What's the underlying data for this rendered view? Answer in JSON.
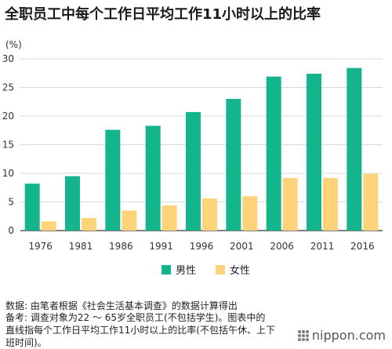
{
  "title": "全职员工中每个工作日平均工作11小时以上的比率",
  "unit_label": "(%)",
  "legend": {
    "male": "男性",
    "female": "女性"
  },
  "colors": {
    "male": "#14b48c",
    "female": "#ffd37a",
    "grid": "#d9d9d9",
    "axis": "#333333"
  },
  "notes": {
    "line1": "数据: 由笔者根据《社会生活基本调查》的数据计算得出",
    "line2": "备考: 调查对象为22 ～ 65岁全职员工(不包括学生)。图表中的",
    "line3": "直线指每个工作日平均工作11小时以上的比率(不包括午休、上下",
    "line4": "班时间)。"
  },
  "brand": {
    "text": "nippon.com",
    "icon": "nippon-dots-icon"
  },
  "chart_data": {
    "type": "bar",
    "categories": [
      "1976",
      "1981",
      "1986",
      "1991",
      "1996",
      "2001",
      "2006",
      "2011",
      "2016"
    ],
    "series": [
      {
        "name": "男性",
        "values": [
          8.2,
          9.5,
          17.6,
          18.3,
          20.7,
          23.0,
          26.9,
          27.4,
          28.4
        ]
      },
      {
        "name": "女性",
        "values": [
          1.6,
          2.2,
          3.5,
          4.4,
          5.6,
          6.0,
          9.2,
          9.2,
          9.9
        ]
      }
    ],
    "ylim": [
      0,
      30
    ],
    "yticks": [
      0,
      5,
      10,
      15,
      20,
      25,
      30
    ],
    "ytick_labels": [
      "0",
      "5",
      "10",
      "15",
      "20",
      "25",
      "30"
    ],
    "grid": true,
    "legend_position": "bottom-center",
    "title": "全职员工中每个工作日平均工作11小时以上的比率",
    "xlabel": "",
    "ylabel": "(%)"
  }
}
